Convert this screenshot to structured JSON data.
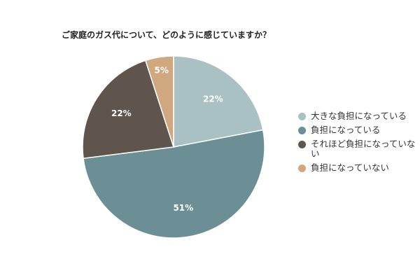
{
  "chart_data": {
    "type": "pie",
    "title": "ご家庭のガス代について、どのように感じていますか？",
    "slices": [
      {
        "label": "大きな負担になっている",
        "value": 22,
        "value_label": "22%",
        "color": "#a9c1c2"
      },
      {
        "label": "負担になっている",
        "value": 51,
        "value_label": "51%",
        "color": "#6b8f94"
      },
      {
        "label": "それほど負担になっていない",
        "value": 22,
        "value_label": "22%",
        "color": "#5f554d"
      },
      {
        "label": "負担になっていない",
        "value": 5,
        "value_label": "5%",
        "color": "#cfa880"
      }
    ],
    "legend_position": "right"
  }
}
